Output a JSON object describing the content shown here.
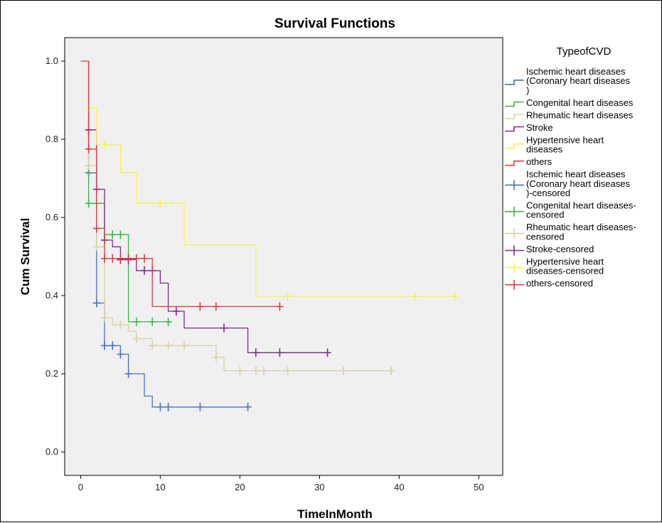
{
  "chart_data": {
    "type": "line",
    "title": "Survival Functions",
    "xlabel": "TimeInMonth",
    "ylabel": "Cum Survival",
    "xlim": [
      -2,
      53
    ],
    "ylim": [
      -0.06,
      1.06
    ],
    "x_ticks": [
      0,
      10,
      20,
      30,
      40,
      50
    ],
    "y_ticks": [
      0.0,
      0.2,
      0.4,
      0.6,
      0.8,
      1.0
    ],
    "y_tick_labels": [
      "0.0",
      "0.2",
      "0.4",
      "0.6",
      "0.8",
      "1.0"
    ],
    "grid": false,
    "legend_position": "right",
    "legend_title": "TypeofCVD",
    "background_color": "#f0f0f0",
    "series": [
      {
        "name": "Ischemic heart diseases (Coronary heart diseases )",
        "color": "#4a6fc1",
        "steps": [
          [
            1,
            0.714
          ],
          [
            2,
            0.381
          ],
          [
            3,
            0.272
          ],
          [
            5,
            0.25
          ],
          [
            6,
            0.2
          ],
          [
            8,
            0.143
          ],
          [
            9,
            0.115
          ],
          [
            21,
            0.115
          ]
        ],
        "censored": [
          [
            1,
            0.714
          ],
          [
            2,
            0.381
          ],
          [
            3,
            0.272
          ],
          [
            4,
            0.272
          ],
          [
            5,
            0.25
          ],
          [
            6,
            0.2
          ],
          [
            10,
            0.115
          ],
          [
            11,
            0.115
          ],
          [
            15,
            0.115
          ],
          [
            21,
            0.115
          ]
        ]
      },
      {
        "name": "Congenital heart diseases",
        "color": "#3bb64a",
        "steps": [
          [
            1,
            0.636
          ],
          [
            3,
            0.556
          ],
          [
            6,
            0.333
          ],
          [
            11,
            0.333
          ]
        ],
        "censored": [
          [
            1,
            0.636
          ],
          [
            2,
            0.636
          ],
          [
            4,
            0.556
          ],
          [
            5,
            0.556
          ],
          [
            7,
            0.333
          ],
          [
            9,
            0.333
          ],
          [
            11,
            0.333
          ]
        ]
      },
      {
        "name": "Rheumatic heart diseases",
        "color": "#d8d0a4",
        "steps": [
          [
            1,
            0.733
          ],
          [
            2,
            0.525
          ],
          [
            3,
            0.343
          ],
          [
            4,
            0.325
          ],
          [
            6,
            0.309
          ],
          [
            7,
            0.29
          ],
          [
            9,
            0.272
          ],
          [
            17,
            0.242
          ],
          [
            18,
            0.208
          ],
          [
            39,
            0.208
          ]
        ],
        "censored": [
          [
            1,
            0.733
          ],
          [
            2,
            0.525
          ],
          [
            3,
            0.343
          ],
          [
            5,
            0.325
          ],
          [
            7,
            0.29
          ],
          [
            9,
            0.272
          ],
          [
            11,
            0.272
          ],
          [
            13,
            0.272
          ],
          [
            17,
            0.242
          ],
          [
            20,
            0.208
          ],
          [
            22,
            0.208
          ],
          [
            23,
            0.208
          ],
          [
            26,
            0.208
          ],
          [
            33,
            0.208
          ],
          [
            39,
            0.208
          ]
        ]
      },
      {
        "name": "Stroke",
        "color": "#7b2a8c",
        "steps": [
          [
            1,
            0.824
          ],
          [
            2,
            0.672
          ],
          [
            3,
            0.542
          ],
          [
            4,
            0.525
          ],
          [
            5,
            0.492
          ],
          [
            7,
            0.464
          ],
          [
            10,
            0.432
          ],
          [
            11,
            0.36
          ],
          [
            13,
            0.317
          ],
          [
            21,
            0.254
          ],
          [
            31,
            0.254
          ]
        ],
        "censored": [
          [
            1,
            0.824
          ],
          [
            2,
            0.672
          ],
          [
            3,
            0.542
          ],
          [
            5,
            0.492
          ],
          [
            6,
            0.492
          ],
          [
            8,
            0.464
          ],
          [
            9,
            0.464
          ],
          [
            12,
            0.36
          ],
          [
            18,
            0.317
          ],
          [
            22,
            0.254
          ],
          [
            25,
            0.254
          ],
          [
            31,
            0.254
          ]
        ]
      },
      {
        "name": "Hypertensive heart diseases",
        "color": "#f7f24a",
        "steps": [
          [
            1,
            0.88
          ],
          [
            2,
            0.786
          ],
          [
            5,
            0.715
          ],
          [
            7,
            0.636
          ],
          [
            13,
            0.53
          ],
          [
            22,
            0.398
          ],
          [
            47,
            0.398
          ]
        ],
        "censored": [
          [
            1,
            0.88
          ],
          [
            3,
            0.786
          ],
          [
            10,
            0.636
          ],
          [
            26,
            0.398
          ],
          [
            42,
            0.398
          ],
          [
            47,
            0.398
          ]
        ]
      },
      {
        "name": "others",
        "color": "#e63b3b",
        "steps": [
          [
            0,
            1.0
          ],
          [
            1,
            0.775
          ],
          [
            2,
            0.572
          ],
          [
            3,
            0.495
          ],
          [
            9,
            0.372
          ],
          [
            25,
            0.372
          ]
        ],
        "censored": [
          [
            1,
            0.775
          ],
          [
            2,
            0.572
          ],
          [
            3,
            0.495
          ],
          [
            4,
            0.495
          ],
          [
            5,
            0.495
          ],
          [
            6,
            0.495
          ],
          [
            7,
            0.495
          ],
          [
            8,
            0.495
          ],
          [
            15,
            0.372
          ],
          [
            17,
            0.372
          ],
          [
            25,
            0.372
          ]
        ]
      }
    ],
    "legend_entries": [
      {
        "label": "Ischemic heart diseases (Coronary heart diseases )",
        "lines": [
          "Ischemic heart diseases",
          "(Coronary heart diseases",
          ")"
        ],
        "color": "#4a6fc1",
        "marker": "step"
      },
      {
        "label": "Congenital heart diseases",
        "lines": [
          "Congenital heart diseases"
        ],
        "color": "#3bb64a",
        "marker": "step"
      },
      {
        "label": "Rheumatic heart diseases",
        "lines": [
          "Rheumatic heart diseases"
        ],
        "color": "#d8d0a4",
        "marker": "step"
      },
      {
        "label": "Stroke",
        "lines": [
          "Stroke"
        ],
        "color": "#7b2a8c",
        "marker": "step"
      },
      {
        "label": "Hypertensive heart diseases",
        "lines": [
          "Hypertensive heart",
          "diseases"
        ],
        "color": "#f7f24a",
        "marker": "step"
      },
      {
        "label": "others",
        "lines": [
          "others"
        ],
        "color": "#e63b3b",
        "marker": "step"
      },
      {
        "label": "Ischemic heart diseases (Coronary heart diseases )-censored",
        "lines": [
          "Ischemic heart diseases",
          "(Coronary heart diseases",
          ")-censored"
        ],
        "color": "#4a6fc1",
        "marker": "plus"
      },
      {
        "label": "Congenital heart diseases-censored",
        "lines": [
          "Congenital heart diseases-",
          "censored"
        ],
        "color": "#3bb64a",
        "marker": "plus"
      },
      {
        "label": "Rheumatic heart diseases-censored",
        "lines": [
          "Rheumatic heart diseases-",
          "censored"
        ],
        "color": "#d8d0a4",
        "marker": "plus"
      },
      {
        "label": "Stroke-censored",
        "lines": [
          "Stroke-censored"
        ],
        "color": "#7b2a8c",
        "marker": "plus"
      },
      {
        "label": "Hypertensive heart diseases-censored",
        "lines": [
          "Hypertensive heart",
          "diseases-censored"
        ],
        "color": "#f7f24a",
        "marker": "plus"
      },
      {
        "label": "others-censored",
        "lines": [
          "others-censored"
        ],
        "color": "#e63b3b",
        "marker": "plus"
      }
    ]
  }
}
